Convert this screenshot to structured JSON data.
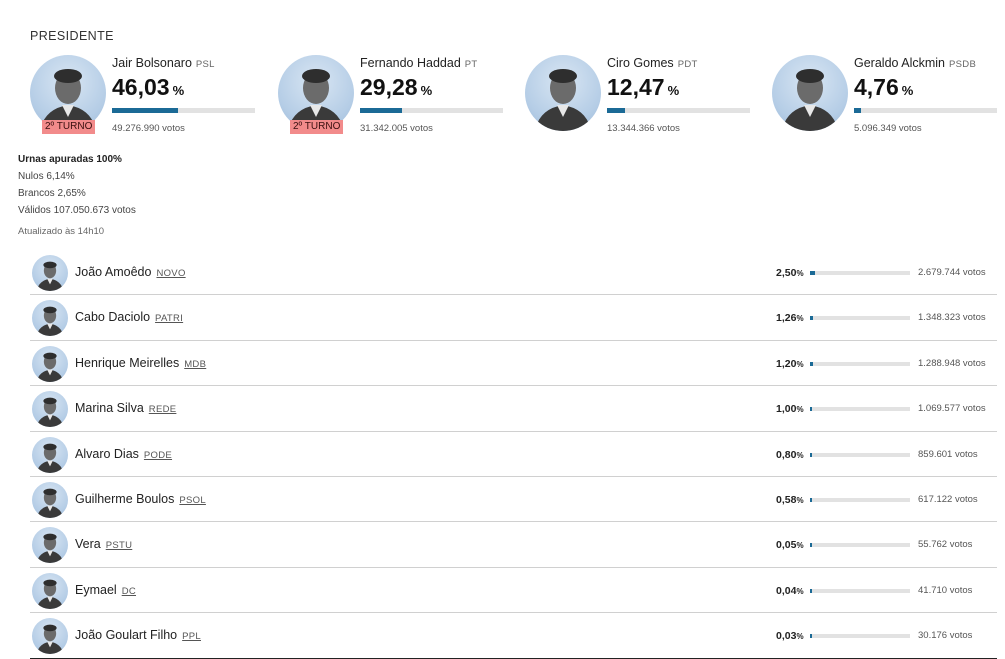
{
  "section_title": "PRESIDENTE",
  "top_candidates": [
    {
      "name": "Jair Bolsonaro",
      "party": "PSL",
      "pct": "46,03",
      "pct_sign": "%",
      "share": 46.03,
      "votes": "49.276.990 votos",
      "badge": "2º TURNO",
      "avatar_icon": "candidate-photo-icon"
    },
    {
      "name": "Fernando Haddad",
      "party": "PT",
      "pct": "29,28",
      "pct_sign": "%",
      "share": 29.28,
      "votes": "31.342.005 votos",
      "badge": "2º TURNO",
      "avatar_icon": "candidate-photo-icon"
    },
    {
      "name": "Ciro Gomes",
      "party": "PDT",
      "pct": "12,47",
      "pct_sign": "%",
      "share": 12.47,
      "votes": "13.344.366 votos",
      "badge": "",
      "avatar_icon": "candidate-photo-icon"
    },
    {
      "name": "Geraldo Alckmin",
      "party": "PSDB",
      "pct": "4,76",
      "pct_sign": "%",
      "share": 4.76,
      "votes": "5.096.349 votos",
      "badge": "",
      "avatar_icon": "candidate-photo-icon"
    }
  ],
  "stats": {
    "urnas": "Urnas apuradas 100%",
    "nulos": "Nulos 6,14%",
    "brancos": "Brancos 2,65%",
    "validos": "Válidos 107.050.673 votos"
  },
  "updated": "Atualizado às 14h10",
  "other_candidates": [
    {
      "name": "João Amoêdo",
      "party": "NOVO",
      "pct": "2,50",
      "pct_sign": "%",
      "share": 2.5,
      "votes": "2.679.744 votos"
    },
    {
      "name": "Cabo Daciolo",
      "party": "PATRI",
      "pct": "1,26",
      "pct_sign": "%",
      "share": 1.26,
      "votes": "1.348.323 votos"
    },
    {
      "name": "Henrique Meirelles",
      "party": "MDB",
      "pct": "1,20",
      "pct_sign": "%",
      "share": 1.2,
      "votes": "1.288.948 votos"
    },
    {
      "name": "Marina Silva",
      "party": "REDE",
      "pct": "1,00",
      "pct_sign": "%",
      "share": 1.0,
      "votes": "1.069.577 votos"
    },
    {
      "name": "Alvaro Dias",
      "party": "PODE",
      "pct": "0,80",
      "pct_sign": "%",
      "share": 0.8,
      "votes": "859.601 votos"
    },
    {
      "name": "Guilherme Boulos",
      "party": "PSOL",
      "pct": "0,58",
      "pct_sign": "%",
      "share": 0.58,
      "votes": "617.122 votos"
    },
    {
      "name": "Vera",
      "party": "PSTU",
      "pct": "0,05",
      "pct_sign": "%",
      "share": 0.05,
      "votes": "55.762 votos"
    },
    {
      "name": "Eymael",
      "party": "DC",
      "pct": "0,04",
      "pct_sign": "%",
      "share": 0.04,
      "votes": "41.710 votos"
    },
    {
      "name": "João Goulart Filho",
      "party": "PPL",
      "pct": "0,03",
      "pct_sign": "%",
      "share": 0.03,
      "votes": "30.176 votos"
    }
  ],
  "colors": {
    "bar_fill": "#1b6a96",
    "bar_track": "#e2e2e2",
    "badge_bg": "#f28b8b",
    "avatar_bg": "#b5cde6"
  }
}
